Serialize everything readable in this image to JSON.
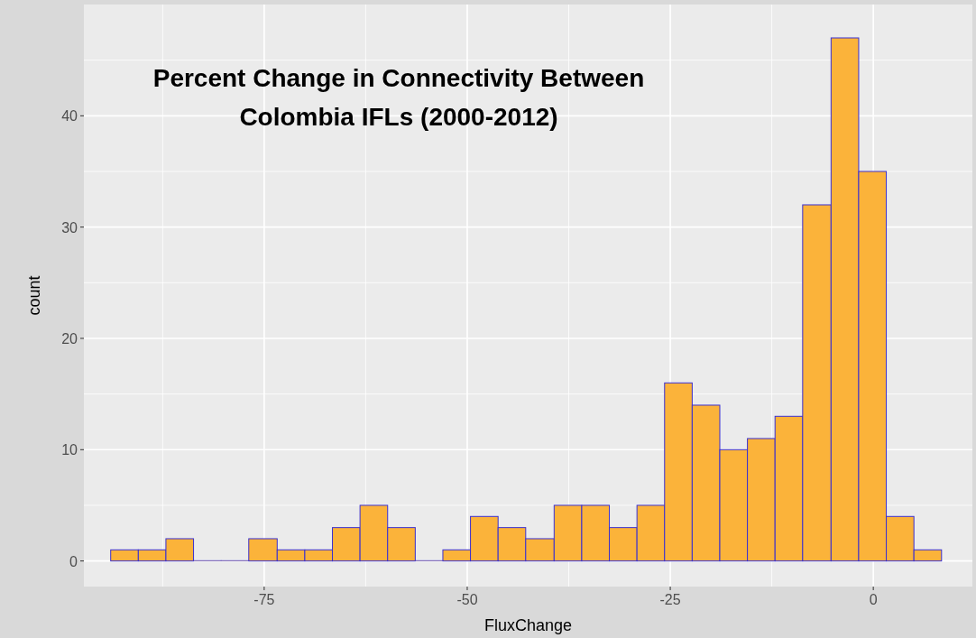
{
  "chart_data": {
    "type": "histogram",
    "title": "Percent Change in Connectivity Between Colombia IFLs (2000-2012)",
    "xlabel": "FluxChange",
    "ylabel": "count",
    "bins": [
      -93.9,
      -90.5,
      -87.1,
      -83.7,
      -80.3,
      -76.9,
      -73.4,
      -70.0,
      -66.6,
      -63.2,
      -59.8,
      -56.4,
      -53.0,
      -49.6,
      -46.2,
      -42.8,
      -39.3,
      -35.9,
      -32.5,
      -29.1,
      -25.7,
      -22.3,
      -18.9,
      -15.5,
      -12.1,
      -8.7,
      -5.2,
      -1.8,
      1.6,
      5.0,
      8.4
    ],
    "values": [
      1,
      1,
      2,
      0,
      0,
      2,
      1,
      1,
      3,
      5,
      3,
      0,
      1,
      4,
      3,
      2,
      5,
      5,
      3,
      5,
      16,
      14,
      10,
      11,
      13,
      32,
      47,
      35,
      4,
      1
    ],
    "color": "#fbb33a",
    "xlim": [
      -97.2,
      12.2
    ],
    "ylim": [
      -2.3,
      50
    ],
    "xticks": [
      {
        "value": -87.5,
        "label": null
      },
      -75,
      {
        "value": -62.5,
        "label": null
      },
      -50,
      {
        "value": -37.5,
        "label": null
      },
      -25,
      {
        "value": -12.5,
        "label": null
      },
      0
    ],
    "yticks": [
      0,
      {
        "value": 5,
        "label": null
      },
      10,
      {
        "value": 15,
        "label": null
      },
      20,
      {
        "value": 25,
        "label": null
      },
      30,
      {
        "value": 35,
        "label": null
      },
      40,
      {
        "value": 45,
        "label": null
      }
    ],
    "grid": true
  }
}
